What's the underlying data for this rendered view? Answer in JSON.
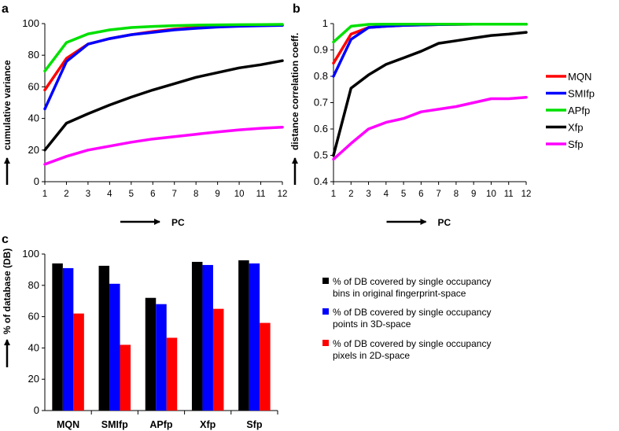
{
  "panels": {
    "a": "a",
    "b": "b",
    "c": "c"
  },
  "legend_ab": [
    {
      "label": "MQN",
      "color": "#ff0000"
    },
    {
      "label": "SMIfp",
      "color": "#0000ff"
    },
    {
      "label": "APfp",
      "color": "#00e000"
    },
    {
      "label": "Xfp",
      "color": "#000000"
    },
    {
      "label": "Sfp",
      "color": "#ff00ff"
    }
  ],
  "legend_c": [
    {
      "lines": [
        "% of DB covered by single occupancy",
        "bins in original fingerprint-space"
      ],
      "color": "#000000"
    },
    {
      "lines": [
        "% of DB covered by single occupancy",
        "points in 3D-space"
      ],
      "color": "#0000ff"
    },
    {
      "lines": [
        "% of DB covered by single occupancy",
        "pixels in 2D-space"
      ],
      "color": "#ff0000"
    }
  ],
  "chart_data": [
    {
      "id": "a",
      "type": "line",
      "xlabel": "PC",
      "ylabel": "cumulative variance",
      "x": [
        1,
        2,
        3,
        4,
        5,
        6,
        7,
        8,
        9,
        10,
        11,
        12
      ],
      "xlim": [
        1,
        12
      ],
      "ylim": [
        0,
        100
      ],
      "yticks": [
        0,
        20,
        40,
        60,
        80,
        100
      ],
      "ytick_labels": [
        "0",
        "20",
        "40",
        "60",
        "80",
        "100"
      ],
      "series": [
        {
          "name": "MQN",
          "color": "#ff0000",
          "values": [
            58,
            78,
            87,
            90.5,
            93,
            95,
            96.5,
            97.5,
            98,
            98.5,
            98.8,
            99
          ]
        },
        {
          "name": "SMIfp",
          "color": "#0000ff",
          "values": [
            46,
            76,
            87,
            90.5,
            93,
            94.5,
            96,
            97,
            97.8,
            98.3,
            98.6,
            98.9
          ]
        },
        {
          "name": "APfp",
          "color": "#00e000",
          "values": [
            70,
            88,
            93.5,
            96,
            97.5,
            98.2,
            98.7,
            99,
            99.2,
            99.3,
            99.4,
            99.5
          ]
        },
        {
          "name": "Xfp",
          "color": "#000000",
          "values": [
            20,
            37,
            43,
            48.5,
            53.5,
            58,
            62,
            66,
            69,
            72,
            74,
            76.5
          ]
        },
        {
          "name": "Sfp",
          "color": "#ff00ff",
          "values": [
            11,
            16,
            20,
            22.5,
            25,
            27,
            28.5,
            30,
            31.5,
            32.8,
            33.8,
            34.5
          ]
        }
      ]
    },
    {
      "id": "b",
      "type": "line",
      "xlabel": "PC",
      "ylabel": "distance correlation coeff.",
      "x": [
        1,
        2,
        3,
        4,
        5,
        6,
        7,
        8,
        9,
        10,
        11,
        12
      ],
      "xlim": [
        1,
        12
      ],
      "ylim": [
        0.4,
        1.0
      ],
      "yticks": [
        0.4,
        0.5,
        0.6,
        0.7,
        0.8,
        0.9,
        1.0
      ],
      "ytick_labels": [
        "0.4",
        "0.5",
        "0.6",
        "0.7",
        "0.8",
        "0.9",
        "1"
      ],
      "series": [
        {
          "name": "MQN",
          "color": "#ff0000",
          "values": [
            0.85,
            0.96,
            0.985,
            0.99,
            0.993,
            0.995,
            0.996,
            0.997,
            0.998,
            0.998,
            0.998,
            0.998
          ]
        },
        {
          "name": "SMIfp",
          "color": "#0000ff",
          "values": [
            0.8,
            0.94,
            0.985,
            0.99,
            0.993,
            0.995,
            0.996,
            0.997,
            0.998,
            0.998,
            0.998,
            0.998
          ]
        },
        {
          "name": "APfp",
          "color": "#00e000",
          "values": [
            0.93,
            0.99,
            0.997,
            0.998,
            0.998,
            0.998,
            0.998,
            0.998,
            0.998,
            0.998,
            0.998,
            0.998
          ]
        },
        {
          "name": "Xfp",
          "color": "#000000",
          "values": [
            0.5,
            0.755,
            0.805,
            0.845,
            0.87,
            0.895,
            0.925,
            0.935,
            0.945,
            0.955,
            0.96,
            0.967
          ]
        },
        {
          "name": "Sfp",
          "color": "#ff00ff",
          "values": [
            0.485,
            0.545,
            0.6,
            0.625,
            0.64,
            0.665,
            0.675,
            0.685,
            0.7,
            0.715,
            0.715,
            0.72
          ]
        }
      ]
    },
    {
      "id": "c",
      "type": "bar",
      "ylabel": "% of database (DB)",
      "categories": [
        "MQN",
        "SMIfp",
        "APfp",
        "Xfp",
        "Sfp"
      ],
      "ylim": [
        0,
        100
      ],
      "yticks": [
        0,
        20,
        40,
        60,
        80,
        100
      ],
      "ytick_labels": [
        "0",
        "20",
        "40",
        "60",
        "80",
        "100"
      ],
      "series": [
        {
          "name": "% of DB covered by single occupancy bins in original fingerprint-space",
          "color": "#000000",
          "values": [
            94,
            92.5,
            72,
            95,
            96
          ]
        },
        {
          "name": "% of DB covered by single occupancy points in 3D-space",
          "color": "#0000ff",
          "values": [
            91,
            81,
            68,
            93,
            94
          ]
        },
        {
          "name": "% of DB covered by single occupancy pixels in 2D-space",
          "color": "#ff0000",
          "values": [
            62,
            42,
            46.5,
            65,
            56
          ]
        }
      ]
    }
  ]
}
